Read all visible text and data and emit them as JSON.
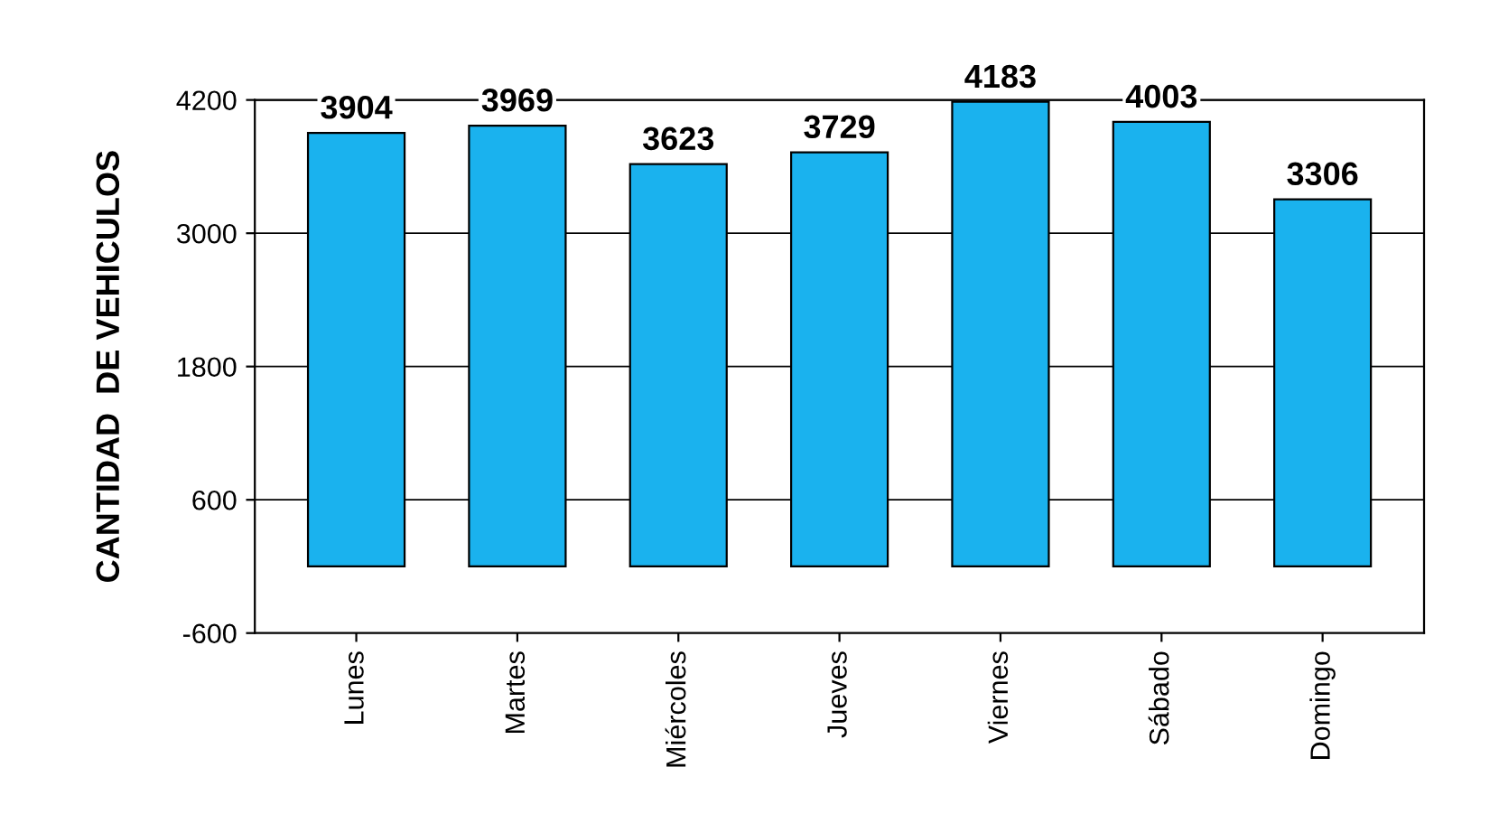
{
  "chart_data": {
    "type": "bar",
    "ylabel": "CANTIDAD  DE VEHICULOS",
    "categories": [
      "Lunes",
      "Martes",
      "Miércoles",
      "Jueves",
      "Viernes",
      "Sábado",
      "Domingo"
    ],
    "values": [
      3904,
      3969,
      3623,
      3729,
      4183,
      4003,
      3306
    ],
    "color": "#1ab2ee",
    "ylim": [
      -600,
      4200
    ],
    "yticks": [
      -600,
      600,
      1800,
      3000,
      4200
    ],
    "grid": "y",
    "data_labels": true
  }
}
